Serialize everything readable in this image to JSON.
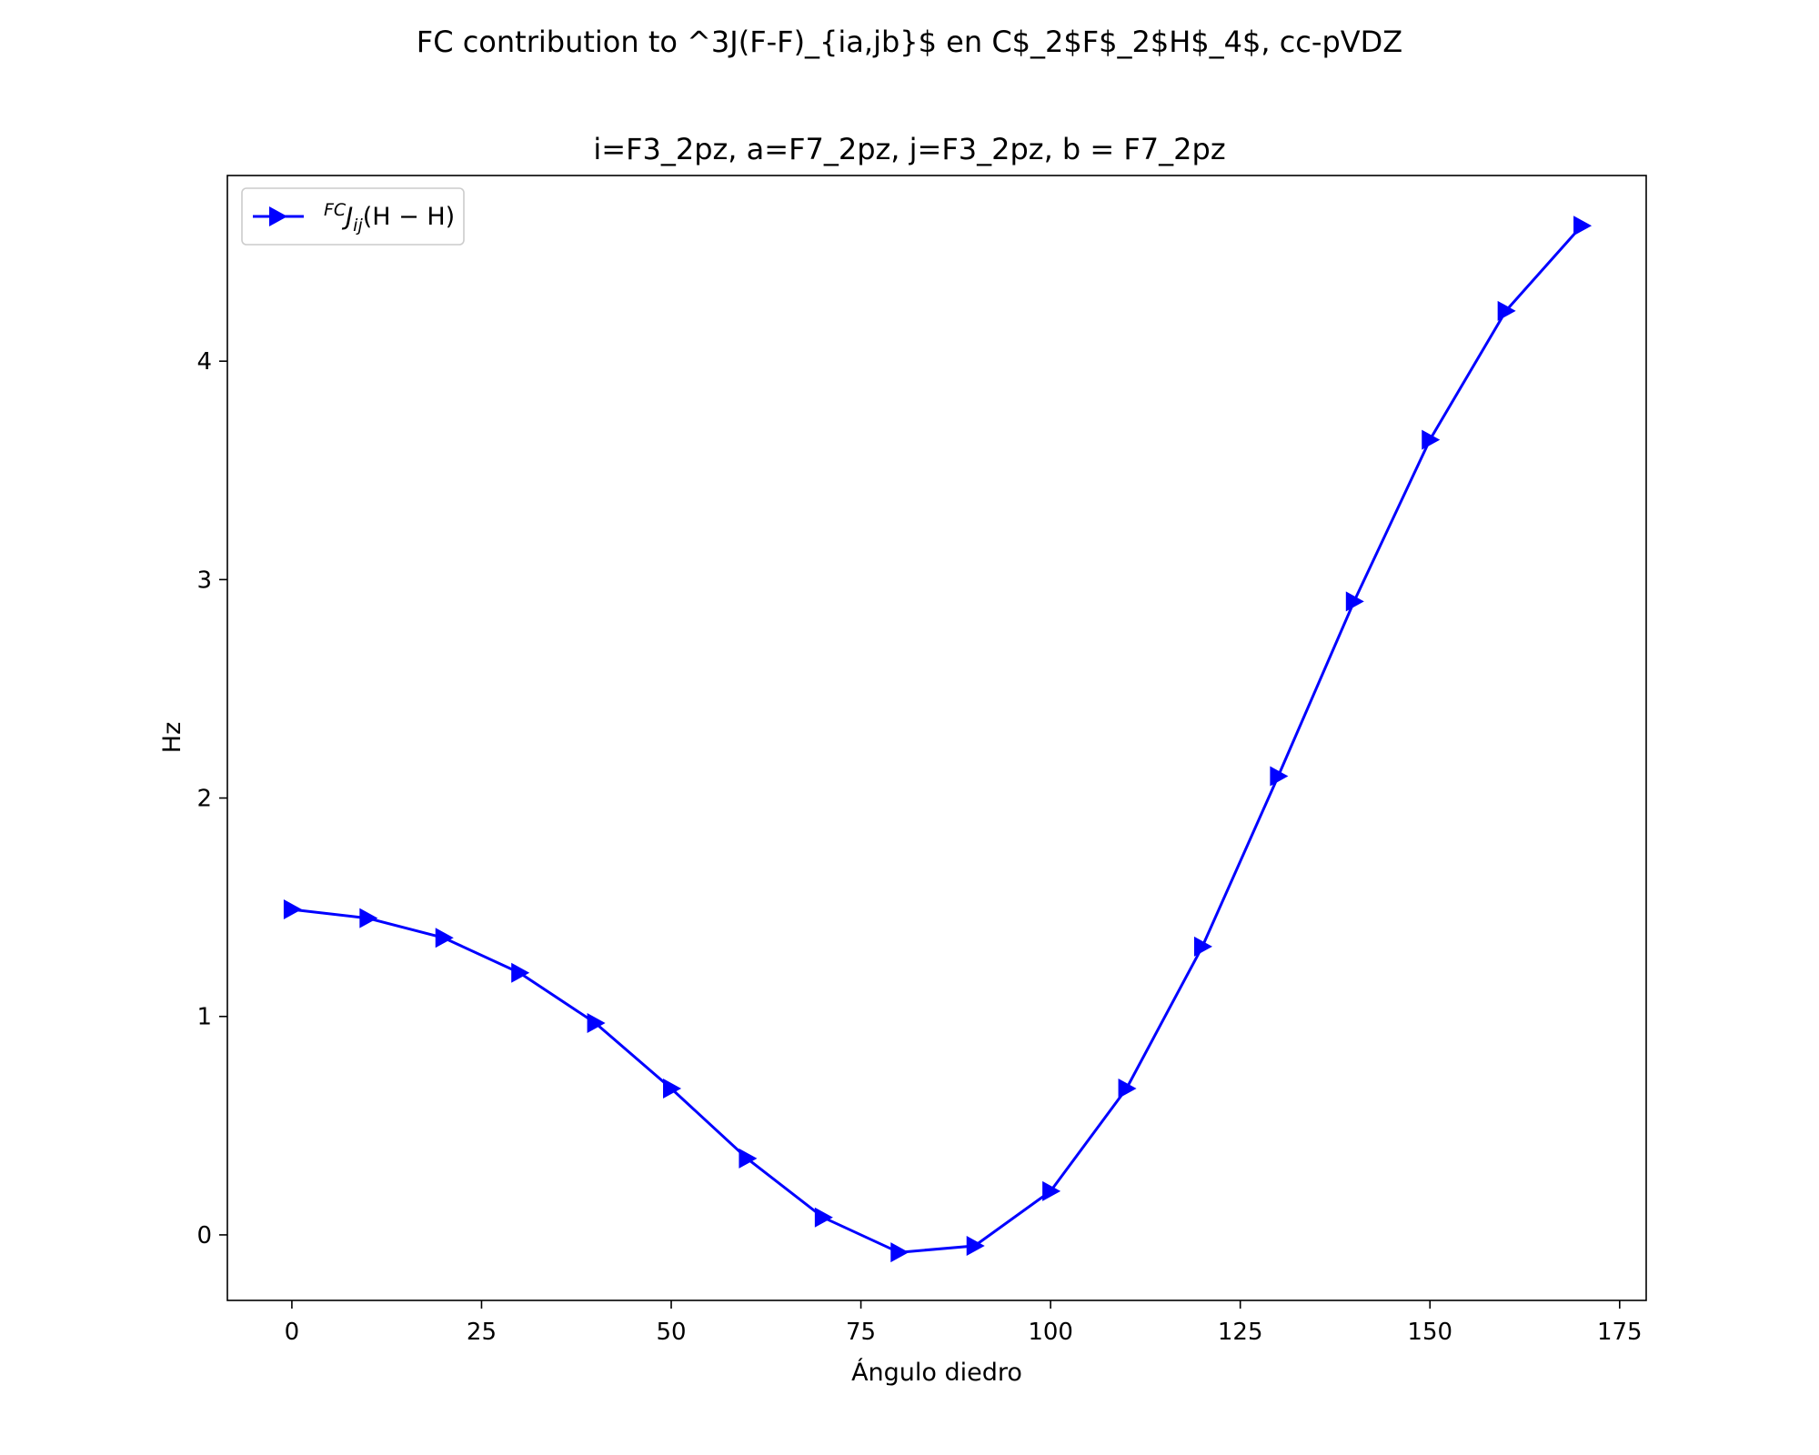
{
  "title": "FC contribution to ^3J(F-F)_{ia,jb}$ en C$_2$F$_2$H$_4$, cc-pVDZ",
  "subtitle": "i=F3_2pz, a=F7_2pz, j=F3_2pz, b = F7_2pz",
  "chart_data": {
    "type": "line",
    "xlabel": "Ángulo diedro",
    "ylabel": "Hz",
    "xlim": [
      -8.5,
      178.5
    ],
    "ylim": [
      -0.3,
      4.85
    ],
    "xticks": [
      0,
      25,
      50,
      75,
      100,
      125,
      150,
      175
    ],
    "yticks": [
      0,
      1,
      2,
      3,
      4
    ],
    "legend_position": "upper-left",
    "grid": false,
    "series": [
      {
        "name": "FC J_ij(H-H)",
        "legend": {
          "sup": "FC",
          "main": "J",
          "sub": "ij",
          "paren": "(H − H)"
        },
        "color": "#0000ff",
        "marker": "triangle-right",
        "x": [
          0,
          10,
          20,
          30,
          40,
          50,
          60,
          70,
          80,
          90,
          100,
          110,
          120,
          130,
          140,
          150,
          160,
          170
        ],
        "y": [
          1.49,
          1.45,
          1.36,
          1.2,
          0.97,
          0.67,
          0.35,
          0.08,
          -0.08,
          -0.05,
          0.2,
          0.67,
          1.32,
          2.1,
          2.9,
          3.64,
          4.23,
          4.62
        ]
      }
    ]
  }
}
